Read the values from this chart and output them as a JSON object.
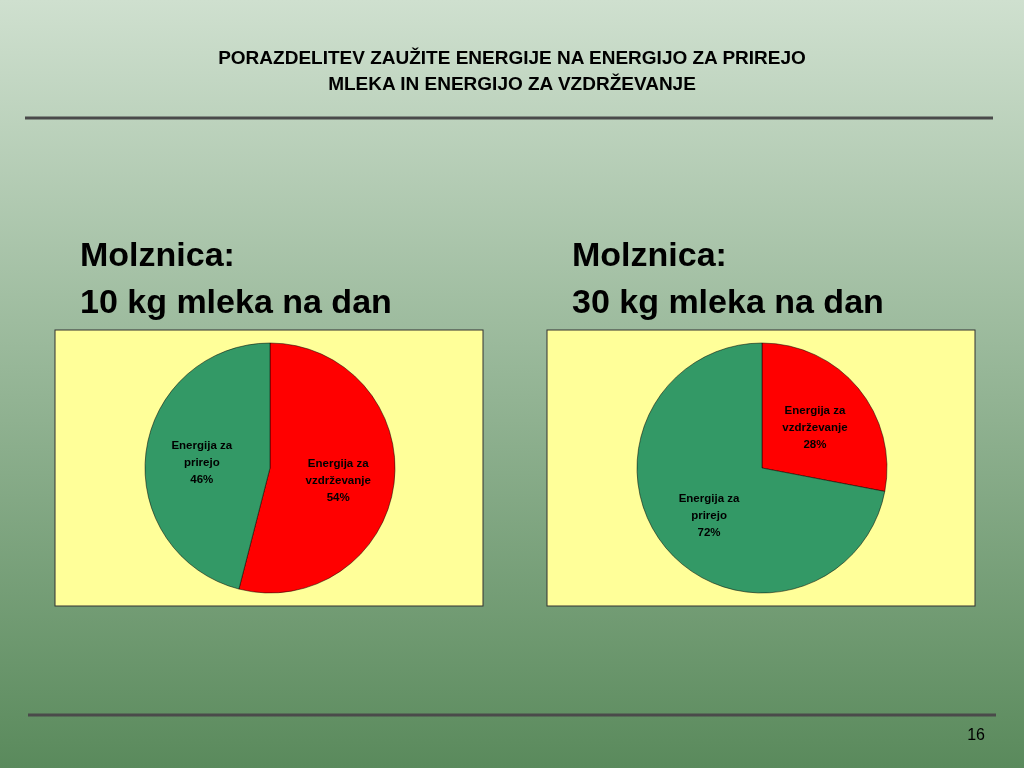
{
  "chart_data": [
    {
      "type": "other",
      "title": "PORAZDELITEV ZAUŽITE ENERGIJE NA ENERGIJO ZA PRIREJO\nMLEKA IN ENERGIJO ZA VZDRŽEVANJE",
      "annotations": [
        "16"
      ]
    },
    {
      "type": "pie",
      "title": "Molznica:\n10 kg mleka na dan",
      "categories": [
        "Energija za vzdrževanje",
        "Energija za prirejo"
      ],
      "values": [
        54,
        46
      ],
      "value_labels": [
        "54%",
        "46%"
      ],
      "colors": [
        "#ff0000",
        "#339966"
      ]
    },
    {
      "type": "pie",
      "title": "Molznica:\n30 kg mleka na dan",
      "categories": [
        "Energija za vzdrževanje",
        "Energija za prirejo"
      ],
      "values": [
        28,
        72
      ],
      "value_labels": [
        "28%",
        "72%"
      ],
      "colors": [
        "#ff0000",
        "#339966"
      ]
    }
  ]
}
